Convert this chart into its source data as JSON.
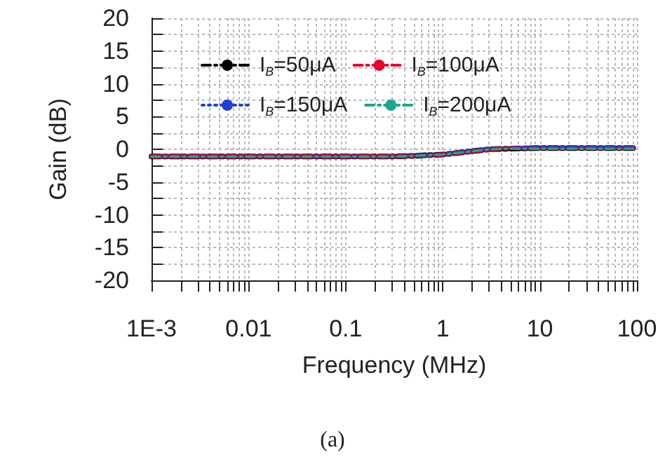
{
  "chart_data": {
    "type": "line",
    "xlabel": "Frequency (MHz)",
    "ylabel": "Gain (dB)",
    "annotations": [
      "(a)"
    ],
    "log": "x",
    "x": [
      0.001,
      0.01,
      0.1,
      0.3,
      0.5,
      1,
      2,
      3,
      5,
      10,
      30,
      100
    ],
    "series": [
      {
        "name": "I$_{B}$=50μA",
        "color": "#000000",
        "line_style": "dashed",
        "values": [
          -1.1,
          -1.1,
          -1.1,
          -1.1,
          -1.0,
          -0.8,
          -0.3,
          0,
          0.1,
          0.2,
          0.2,
          0.2
        ]
      },
      {
        "name": "I$_{B}$=100μA",
        "color": "#e8002a",
        "line_style": "dashed",
        "values": [
          -1.1,
          -1.1,
          -1.1,
          -1.1,
          -1.0,
          -0.8,
          -0.3,
          0,
          0.2,
          0.2,
          0.2,
          0.2
        ]
      },
      {
        "name": "I$_{B}$=150μA",
        "color": "#1c3fd8",
        "line_style": "dotted",
        "values": [
          -1.1,
          -1.1,
          -1.1,
          -1.1,
          -1.0,
          -0.8,
          -0.2,
          0.1,
          0.2,
          0.3,
          0.3,
          0.3
        ]
      },
      {
        "name": "I$_{B}$=200μA",
        "color": "#1aa88a",
        "line_style": "dashed",
        "values": [
          -1.1,
          -1.1,
          -1.1,
          -1.1,
          -1.0,
          -0.8,
          -0.3,
          0,
          0.1,
          0.1,
          0.1,
          0.1
        ]
      }
    ],
    "xlim": [
      0.001,
      100
    ],
    "xticks": [
      {
        "value": 0.001,
        "label": "1E-3"
      },
      0.01,
      0.1,
      1,
      10,
      100
    ],
    "ylim": [
      -20,
      20
    ],
    "yticks": [
      -20,
      -15,
      -10,
      -5,
      0,
      5,
      10,
      15,
      20
    ],
    "grid": true,
    "legend": "top",
    "marker": "none"
  }
}
